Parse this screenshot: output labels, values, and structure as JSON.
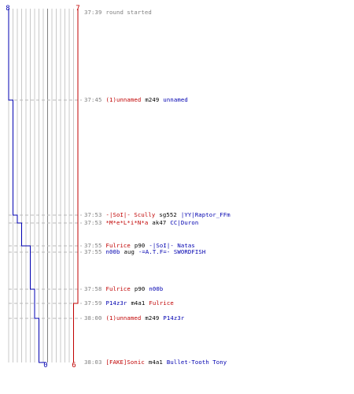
{
  "colors": {
    "team_a": "#0000b0",
    "team_b": "#c00000",
    "grid": "#c8c8c8",
    "dash": "#b8b8b8",
    "time": "#808080",
    "weapon": "#000000"
  },
  "scores": {
    "team_a_start": "8",
    "team_b_start": "7",
    "team_a_end": "0",
    "team_b_end": "6"
  },
  "events": [
    {
      "time": "37:39",
      "text": "round started"
    },
    {
      "time": "37:45",
      "killer": "(1)unnamed",
      "killer_team": "b",
      "weapon": "m249",
      "victim": "unnamed",
      "victim_team": "a"
    },
    {
      "time": "37:53",
      "killer": "-|SoI|- Scully",
      "killer_team": "b",
      "weapon": "sg552",
      "victim": "|YY|Raptor_FFm",
      "victim_team": "a"
    },
    {
      "time": "37:53",
      "killer": "*M*e*L*i*N*a",
      "killer_team": "b",
      "weapon": "ak47",
      "victim": "CC|Duron",
      "victim_team": "a"
    },
    {
      "time": "37:55",
      "killer": "Fulrice",
      "killer_team": "b",
      "weapon": "p90",
      "victim": "-|SoI|- Natas",
      "victim_team": "a"
    },
    {
      "time": "37:55",
      "killer": "n00b",
      "killer_team": "a",
      "weapon": "aug",
      "victim": "-=A.T.F=- SWORDFISH",
      "victim_team": "a"
    },
    {
      "time": "37:58",
      "killer": "Fulrice",
      "killer_team": "b",
      "weapon": "p90",
      "victim": "n00b",
      "victim_team": "a"
    },
    {
      "time": "37:59",
      "killer": "P14z3r",
      "killer_team": "a",
      "weapon": "m4a1",
      "victim": "Fulrice",
      "victim_team": "b"
    },
    {
      "time": "38:00",
      "killer": "(1)unnamed",
      "killer_team": "b",
      "weapon": "m249",
      "victim": "P14z3r",
      "victim_team": "a"
    },
    {
      "time": "38:03",
      "killer": "[FAKE]Sonic",
      "killer_team": "b",
      "weapon": "m4a1",
      "victim": "Bullet-Tooth Tony",
      "victim_team": "a"
    }
  ]
}
